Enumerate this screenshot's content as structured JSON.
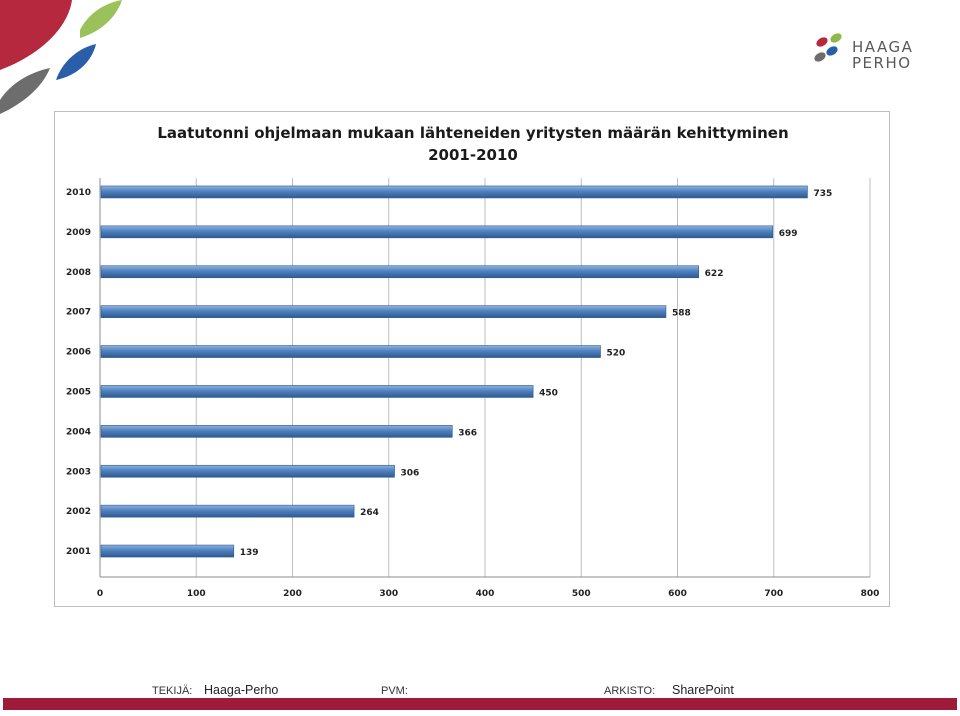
{
  "logo": {
    "line1": "HAAGA",
    "line2": "PERHO"
  },
  "chart_data": {
    "type": "bar",
    "orientation": "horizontal",
    "title": "Laatutonni ohjelmaan mukaan lähteneiden yritysten määrän kehittyminen",
    "subtitle": "2001-2010",
    "categories": [
      "2010",
      "2009",
      "2008",
      "2007",
      "2006",
      "2005",
      "2004",
      "2003",
      "2002",
      "2001"
    ],
    "values": [
      735,
      699,
      622,
      588,
      520,
      450,
      366,
      306,
      264,
      139
    ],
    "xlim": [
      0,
      800
    ],
    "xticks": [
      "0",
      "100",
      "200",
      "300",
      "400",
      "500",
      "600",
      "700",
      "800"
    ],
    "xlabel": "",
    "ylabel": "",
    "grid": true,
    "legend": "none",
    "bar_color": "#4f81bd",
    "data_labels": true
  },
  "footer": {
    "author_label": "TEKIJÄ:",
    "author_value": "Haaga-Perho",
    "date_label": "PVM:",
    "date_value": "",
    "archive_label": "ARKISTO:",
    "archive_value": "SharePoint",
    "bar_color": "#9c1c3a"
  },
  "colors": {
    "accent_red": "#b5283e",
    "accent_green": "#8fb84a",
    "accent_blue": "#2a5ea8",
    "accent_gray": "#5a5a5a"
  }
}
